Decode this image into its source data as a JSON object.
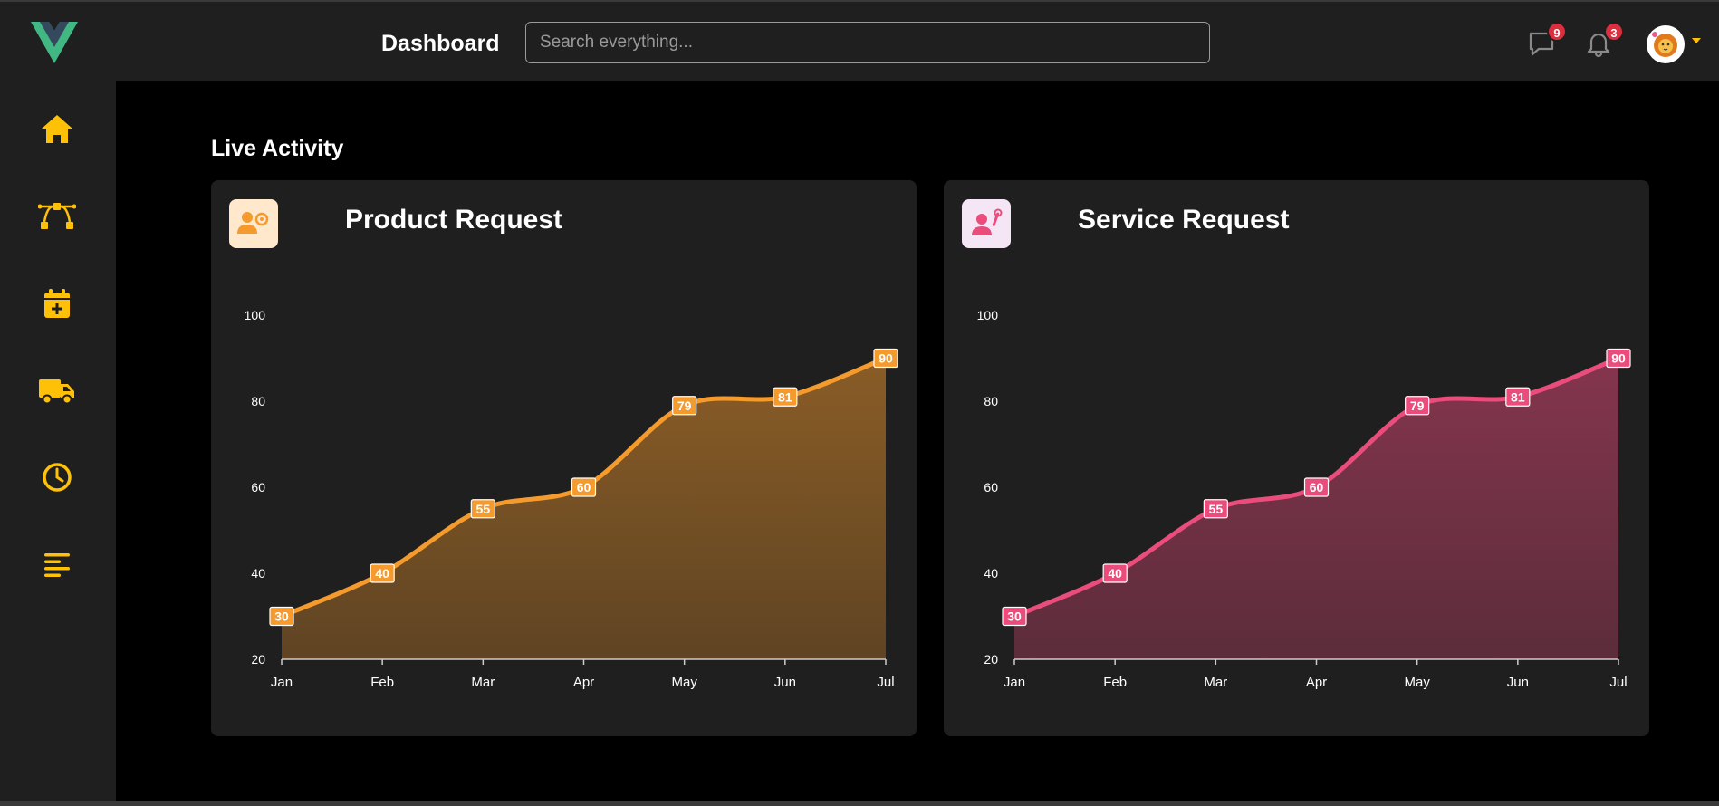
{
  "header": {
    "title": "Dashboard",
    "search_placeholder": "Search everything...",
    "messages_count": "9",
    "notifications_count": "3"
  },
  "sidebar": {
    "items": [
      {
        "icon": "home-icon"
      },
      {
        "icon": "bezier-curve-icon"
      },
      {
        "icon": "calendar-plus-icon"
      },
      {
        "icon": "truck-icon"
      },
      {
        "icon": "clock-icon"
      },
      {
        "icon": "align-left-icon"
      }
    ],
    "accent": "#ffc107"
  },
  "main": {
    "section_title": "Live Activity"
  },
  "chart_data": [
    {
      "type": "area",
      "title": "Product Request",
      "categories": [
        "Jan",
        "Feb",
        "Mar",
        "Apr",
        "May",
        "Jun",
        "Jul"
      ],
      "series": [
        {
          "values": [
            30,
            40,
            55,
            60,
            79,
            81,
            90
          ]
        }
      ],
      "ylim": [
        20,
        100
      ],
      "yticks": [
        20,
        40,
        60,
        80,
        100
      ],
      "color": "#f59a2d",
      "icon_bg": "#ffe8cc"
    },
    {
      "type": "area",
      "title": "Service Request",
      "categories": [
        "Jan",
        "Feb",
        "Mar",
        "Apr",
        "May",
        "Jun",
        "Jul"
      ],
      "series": [
        {
          "values": [
            30,
            40,
            55,
            60,
            79,
            81,
            90
          ]
        }
      ],
      "ylim": [
        20,
        100
      ],
      "yticks": [
        20,
        40,
        60,
        80,
        100
      ],
      "color": "#ea4c7c",
      "icon_bg": "#f5e6f5"
    }
  ]
}
